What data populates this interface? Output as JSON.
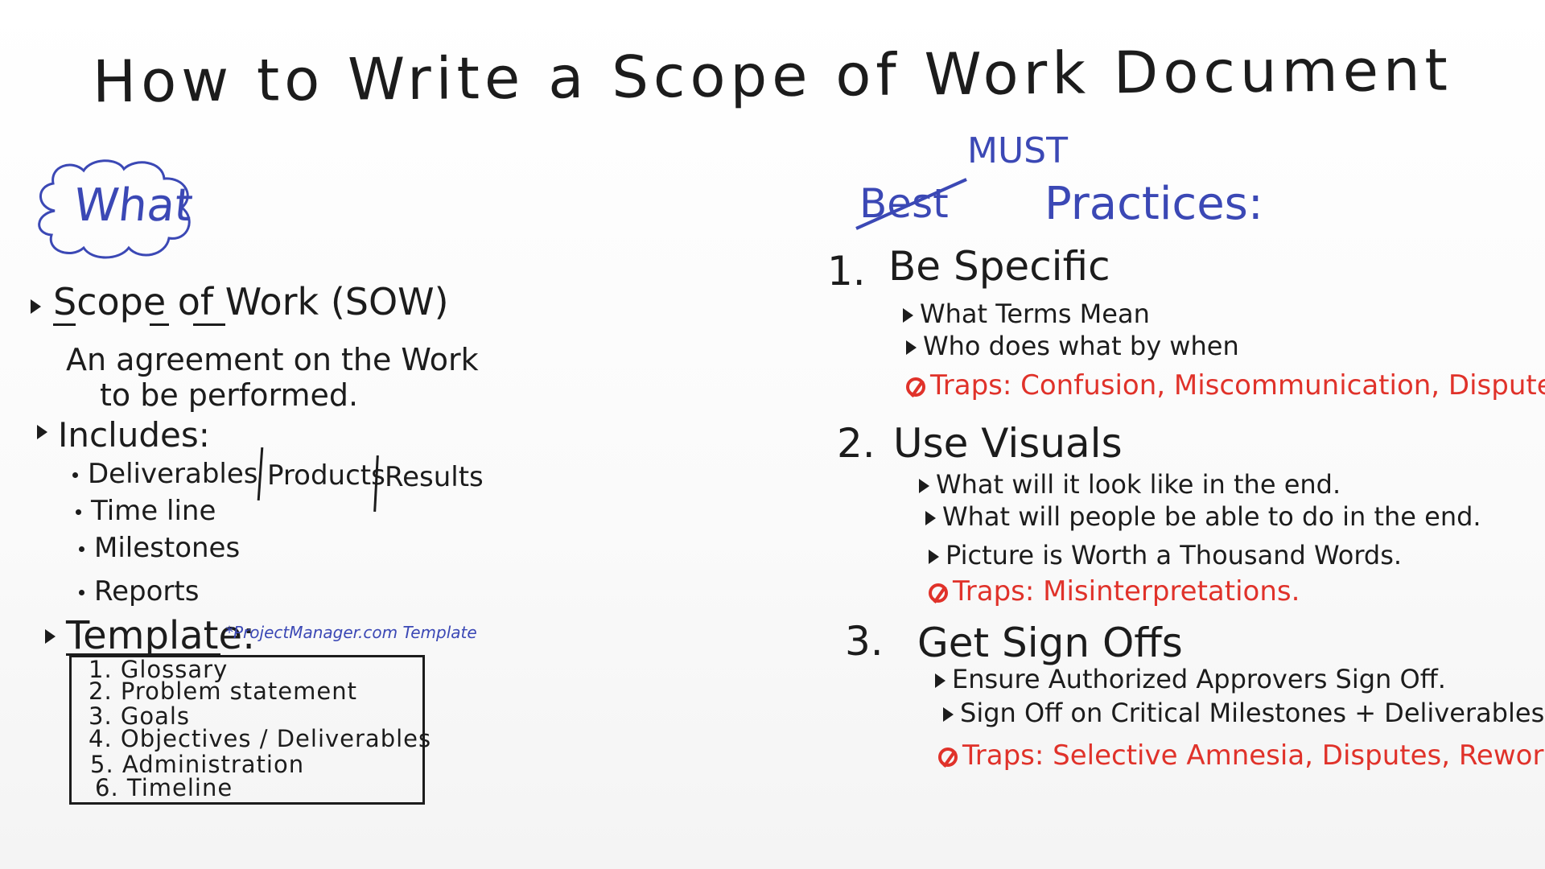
{
  "title": "How to Write a Scope of Work Document",
  "left": {
    "what_label": "What",
    "sow_title": "Scope of Work (SOW)",
    "sow_definition_line1": "An agreement on the Work",
    "sow_definition_line2": "to be performed.",
    "includes_label": "Includes:",
    "includes_items": [
      "Deliverables",
      "Products",
      "Results",
      "Time line",
      "Milestones",
      "Reports"
    ],
    "template_label": "Template:",
    "template_note": "*ProjectManager.com Template",
    "template_items": [
      "1. Glossary",
      "2. Problem statement",
      "3. Goals",
      "4. Objectives / Deliverables",
      "5. Administration",
      "6. Timeline"
    ]
  },
  "right": {
    "header_struck": "Best",
    "header_insert": "MUST",
    "header_rest": "Practices:",
    "sections": [
      {
        "number": "1.",
        "heading": "Be Specific",
        "bullets": [
          "What Terms Mean",
          "Who does what by when"
        ],
        "trap": "Traps: Confusion, Miscommunication, Disputes."
      },
      {
        "number": "2.",
        "heading": "Use Visuals",
        "bullets": [
          "What will it look like in the end.",
          "What will people be able to do in the end.",
          "Picture is Worth a Thousand Words."
        ],
        "trap": "Traps: Misinterpretations."
      },
      {
        "number": "3.",
        "heading": "Get Sign Offs",
        "bullets": [
          "Ensure Authorized Approvers Sign Off.",
          "Sign Off on Critical Milestones + Deliverables."
        ],
        "trap": "Traps: Selective Amnesia, Disputes, Rework."
      }
    ]
  },
  "colors": {
    "ink_black": "#1c1c1c",
    "ink_blue": "#3b48b5",
    "ink_red": "#e0322a",
    "board": "#fbfbfb"
  }
}
